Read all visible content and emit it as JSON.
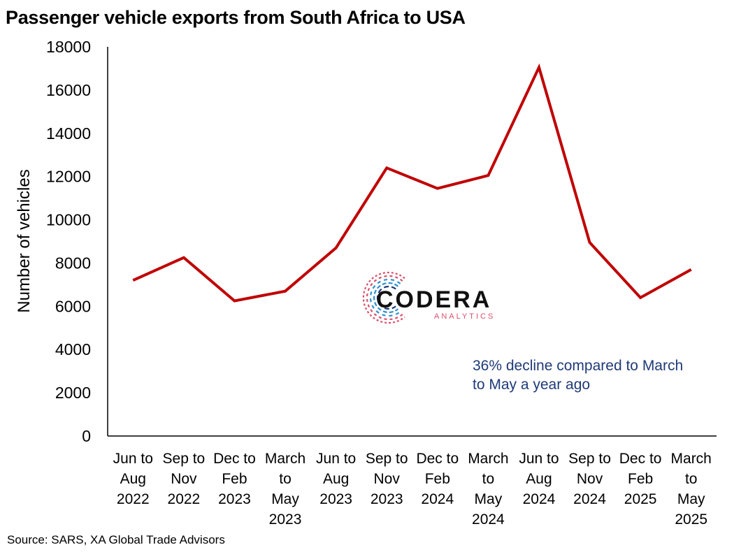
{
  "chart_data": {
    "type": "line",
    "title": "Passenger vehicle exports from South Africa to USA",
    "ylabel": "Number of vehicles",
    "xlabel": "",
    "ylim": [
      0,
      18000
    ],
    "yticks": [
      0,
      2000,
      4000,
      6000,
      8000,
      10000,
      12000,
      14000,
      16000,
      18000
    ],
    "categories": [
      "Jun to Aug 2022",
      "Sep to Nov 2022",
      "Dec to Feb 2023",
      "March to May 2023",
      "Jun to Aug 2023",
      "Sep to Nov 2023",
      "Dec to Feb 2024",
      "March to May 2024",
      "Jun to Aug 2024",
      "Sep to Nov 2024",
      "Dec to Feb 2025",
      "March to May 2025"
    ],
    "category_lines": [
      [
        "Jun to",
        "Aug",
        "2022"
      ],
      [
        "Sep to",
        "Nov",
        "2022"
      ],
      [
        "Dec to",
        "Feb",
        "2023"
      ],
      [
        "March",
        "to",
        "May",
        "2023"
      ],
      [
        "Jun to",
        "Aug",
        "2023"
      ],
      [
        "Sep to",
        "Nov",
        "2023"
      ],
      [
        "Dec to",
        "Feb",
        "2024"
      ],
      [
        "March",
        "to",
        "May",
        "2024"
      ],
      [
        "Jun to",
        "Aug",
        "2024"
      ],
      [
        "Sep to",
        "Nov",
        "2024"
      ],
      [
        "Dec to",
        "Feb",
        "2025"
      ],
      [
        "March",
        "to",
        "May",
        "2025"
      ]
    ],
    "series": [
      {
        "values": [
          7200,
          8250,
          6250,
          6700,
          8700,
          12400,
          11450,
          12050,
          17050,
          8950,
          6400,
          7700
        ],
        "color": "#c00000"
      }
    ],
    "grid": false,
    "legend": "none",
    "annotation": [
      "36% decline compared to March",
      "to May a year ago"
    ],
    "source": "Source: SARS, XA Global Trade Advisors"
  },
  "logo": {
    "name": "CODERA",
    "tagline": "ANALYTICS",
    "colors": [
      "#d8506a",
      "#2f8fd0",
      "#1f3a78"
    ]
  },
  "colors": {
    "line": "#c00000",
    "annotation": "#1f3a78",
    "axis": "#000000"
  }
}
